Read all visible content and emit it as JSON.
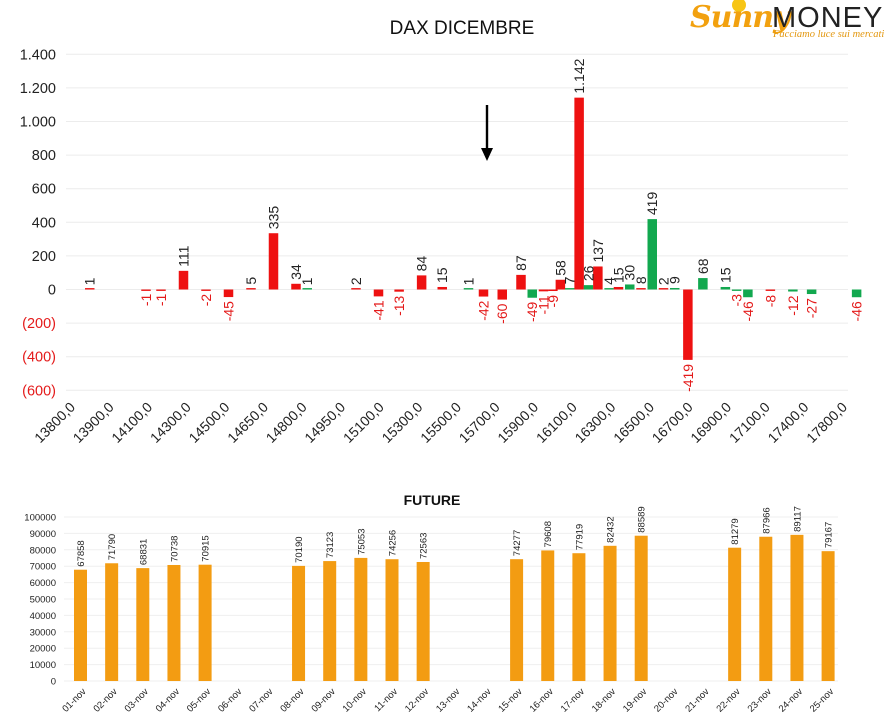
{
  "logo": {
    "brand_a": "Sunny",
    "brand_b": "MONEY",
    "tagline": "Facciamo luce sui mercati"
  },
  "colors": {
    "up": "#ee1111",
    "down": "#12a84f",
    "future": "#f39c12",
    "neg_label": "#e41a1a",
    "text": "#222222"
  },
  "chart_data": [
    {
      "type": "bar",
      "title": "DAX DICEMBRE",
      "ylim": [
        -600,
        1400
      ],
      "yticks": [
        {
          "v": 1400,
          "label": "1.400"
        },
        {
          "v": 1200,
          "label": "1.200"
        },
        {
          "v": 1000,
          "label": "1.000"
        },
        {
          "v": 800,
          "label": "800"
        },
        {
          "v": 600,
          "label": "600"
        },
        {
          "v": 400,
          "label": "400"
        },
        {
          "v": 200,
          "label": "200"
        },
        {
          "v": 0,
          "label": "0"
        },
        {
          "v": -200,
          "label": "(200)"
        },
        {
          "v": -400,
          "label": "(400)"
        },
        {
          "v": -600,
          "label": "(600)"
        }
      ],
      "xticks": [
        "13800,0",
        "13900,0",
        "14100,0",
        "14300,0",
        "14500,0",
        "14650,0",
        "14800,0",
        "14950,0",
        "15100,0",
        "15300,0",
        "15500,0",
        "15700,0",
        "15900,0",
        "16100,0",
        "16300,0",
        "16500,0",
        "16700,0",
        "16900,0",
        "17100,0",
        "17400,0",
        "17800,0"
      ],
      "annotation": "arrow-down near 15700",
      "bars": [
        {
          "pos": 0.5,
          "v": 1,
          "c": "red",
          "label": "1"
        },
        {
          "pos": 2.0,
          "v": -1,
          "c": "red",
          "label": "-1"
        },
        {
          "pos": 2.4,
          "v": -1,
          "c": "red",
          "label": "-1"
        },
        {
          "pos": 3.0,
          "v": 111,
          "c": "red",
          "label": "111"
        },
        {
          "pos": 3.6,
          "v": -2,
          "c": "red",
          "label": "-2"
        },
        {
          "pos": 4.2,
          "v": -45,
          "c": "red",
          "label": "-45"
        },
        {
          "pos": 4.8,
          "v": 5,
          "c": "red",
          "label": "5"
        },
        {
          "pos": 5.4,
          "v": 335,
          "c": "red",
          "label": "335"
        },
        {
          "pos": 6.0,
          "v": 34,
          "c": "red",
          "label": "34"
        },
        {
          "pos": 6.3,
          "v": 1,
          "c": "green",
          "label": "1"
        },
        {
          "pos": 7.6,
          "v": 2,
          "c": "red",
          "label": "2"
        },
        {
          "pos": 8.2,
          "v": -41,
          "c": "red",
          "label": "-41"
        },
        {
          "pos": 8.75,
          "v": -13,
          "c": "red",
          "label": "-13"
        },
        {
          "pos": 9.35,
          "v": 84,
          "c": "red",
          "label": "84"
        },
        {
          "pos": 9.9,
          "v": 15,
          "c": "red",
          "label": "15"
        },
        {
          "pos": 10.6,
          "v": 1,
          "c": "green",
          "label": "1"
        },
        {
          "pos": 11.0,
          "v": -42,
          "c": "red",
          "label": "-42"
        },
        {
          "pos": 11.5,
          "v": -60,
          "c": "red",
          "label": "-60"
        },
        {
          "pos": 12.0,
          "v": 87,
          "c": "red",
          "label": "87"
        },
        {
          "pos": 12.3,
          "v": -49,
          "c": "green",
          "label": "-49"
        },
        {
          "pos": 12.6,
          "v": -11,
          "c": "red",
          "label": "-11"
        },
        {
          "pos": 12.85,
          "v": -9,
          "c": "red",
          "label": "-9"
        },
        {
          "pos": 13.05,
          "v": 58,
          "c": "red",
          "label": "58"
        },
        {
          "pos": 13.3,
          "v": 7,
          "c": "green",
          "label": "7"
        },
        {
          "pos": 13.55,
          "v": 1142,
          "c": "red",
          "label": "1.142"
        },
        {
          "pos": 13.8,
          "v": 26,
          "c": "green",
          "label": "26"
        },
        {
          "pos": 14.05,
          "v": 137,
          "c": "red",
          "label": "137"
        },
        {
          "pos": 14.35,
          "v": 4,
          "c": "green",
          "label": "4"
        },
        {
          "pos": 14.6,
          "v": 15,
          "c": "red",
          "label": "15"
        },
        {
          "pos": 14.9,
          "v": 30,
          "c": "green",
          "label": "30"
        },
        {
          "pos": 15.2,
          "v": 8,
          "c": "red",
          "label": "8"
        },
        {
          "pos": 15.5,
          "v": 419,
          "c": "green",
          "label": "419"
        },
        {
          "pos": 15.8,
          "v": 2,
          "c": "red",
          "label": "2"
        },
        {
          "pos": 16.1,
          "v": 9,
          "c": "green",
          "label": "9"
        },
        {
          "pos": 16.45,
          "v": -419,
          "c": "red",
          "label": "-419"
        },
        {
          "pos": 16.85,
          "v": 68,
          "c": "green",
          "label": "68"
        },
        {
          "pos": 17.45,
          "v": 15,
          "c": "green",
          "label": "15"
        },
        {
          "pos": 17.75,
          "v": -3,
          "c": "green",
          "label": "-3"
        },
        {
          "pos": 18.05,
          "v": -46,
          "c": "green",
          "label": "-46"
        },
        {
          "pos": 18.65,
          "v": -8,
          "c": "red",
          "label": "-8"
        },
        {
          "pos": 19.25,
          "v": -12,
          "c": "green",
          "label": "-12"
        },
        {
          "pos": 19.75,
          "v": -27,
          "c": "green",
          "label": "-27"
        },
        {
          "pos": 20.95,
          "v": -46,
          "c": "green",
          "label": "-46"
        }
      ]
    },
    {
      "type": "bar",
      "title": "FUTURE",
      "ylim": [
        0,
        100000
      ],
      "yticks": [
        0,
        10000,
        20000,
        30000,
        40000,
        50000,
        60000,
        70000,
        80000,
        90000,
        100000
      ],
      "categories": [
        "01-nov",
        "02-nov",
        "03-nov",
        "04-nov",
        "05-nov",
        "06-nov",
        "07-nov",
        "08-nov",
        "09-nov",
        "10-nov",
        "11-nov",
        "12-nov",
        "13-nov",
        "14-nov",
        "15-nov",
        "16-nov",
        "17-nov",
        "18-nov",
        "19-nov",
        "20-nov",
        "21-nov",
        "22-nov",
        "23-nov",
        "24-nov",
        "25-nov"
      ],
      "values": [
        67858,
        71790,
        68831,
        70738,
        70915,
        null,
        null,
        70190,
        73123,
        75053,
        74256,
        72563,
        null,
        null,
        74277,
        79608,
        77919,
        82432,
        88589,
        null,
        null,
        81279,
        87966,
        89117,
        79167
      ]
    }
  ]
}
